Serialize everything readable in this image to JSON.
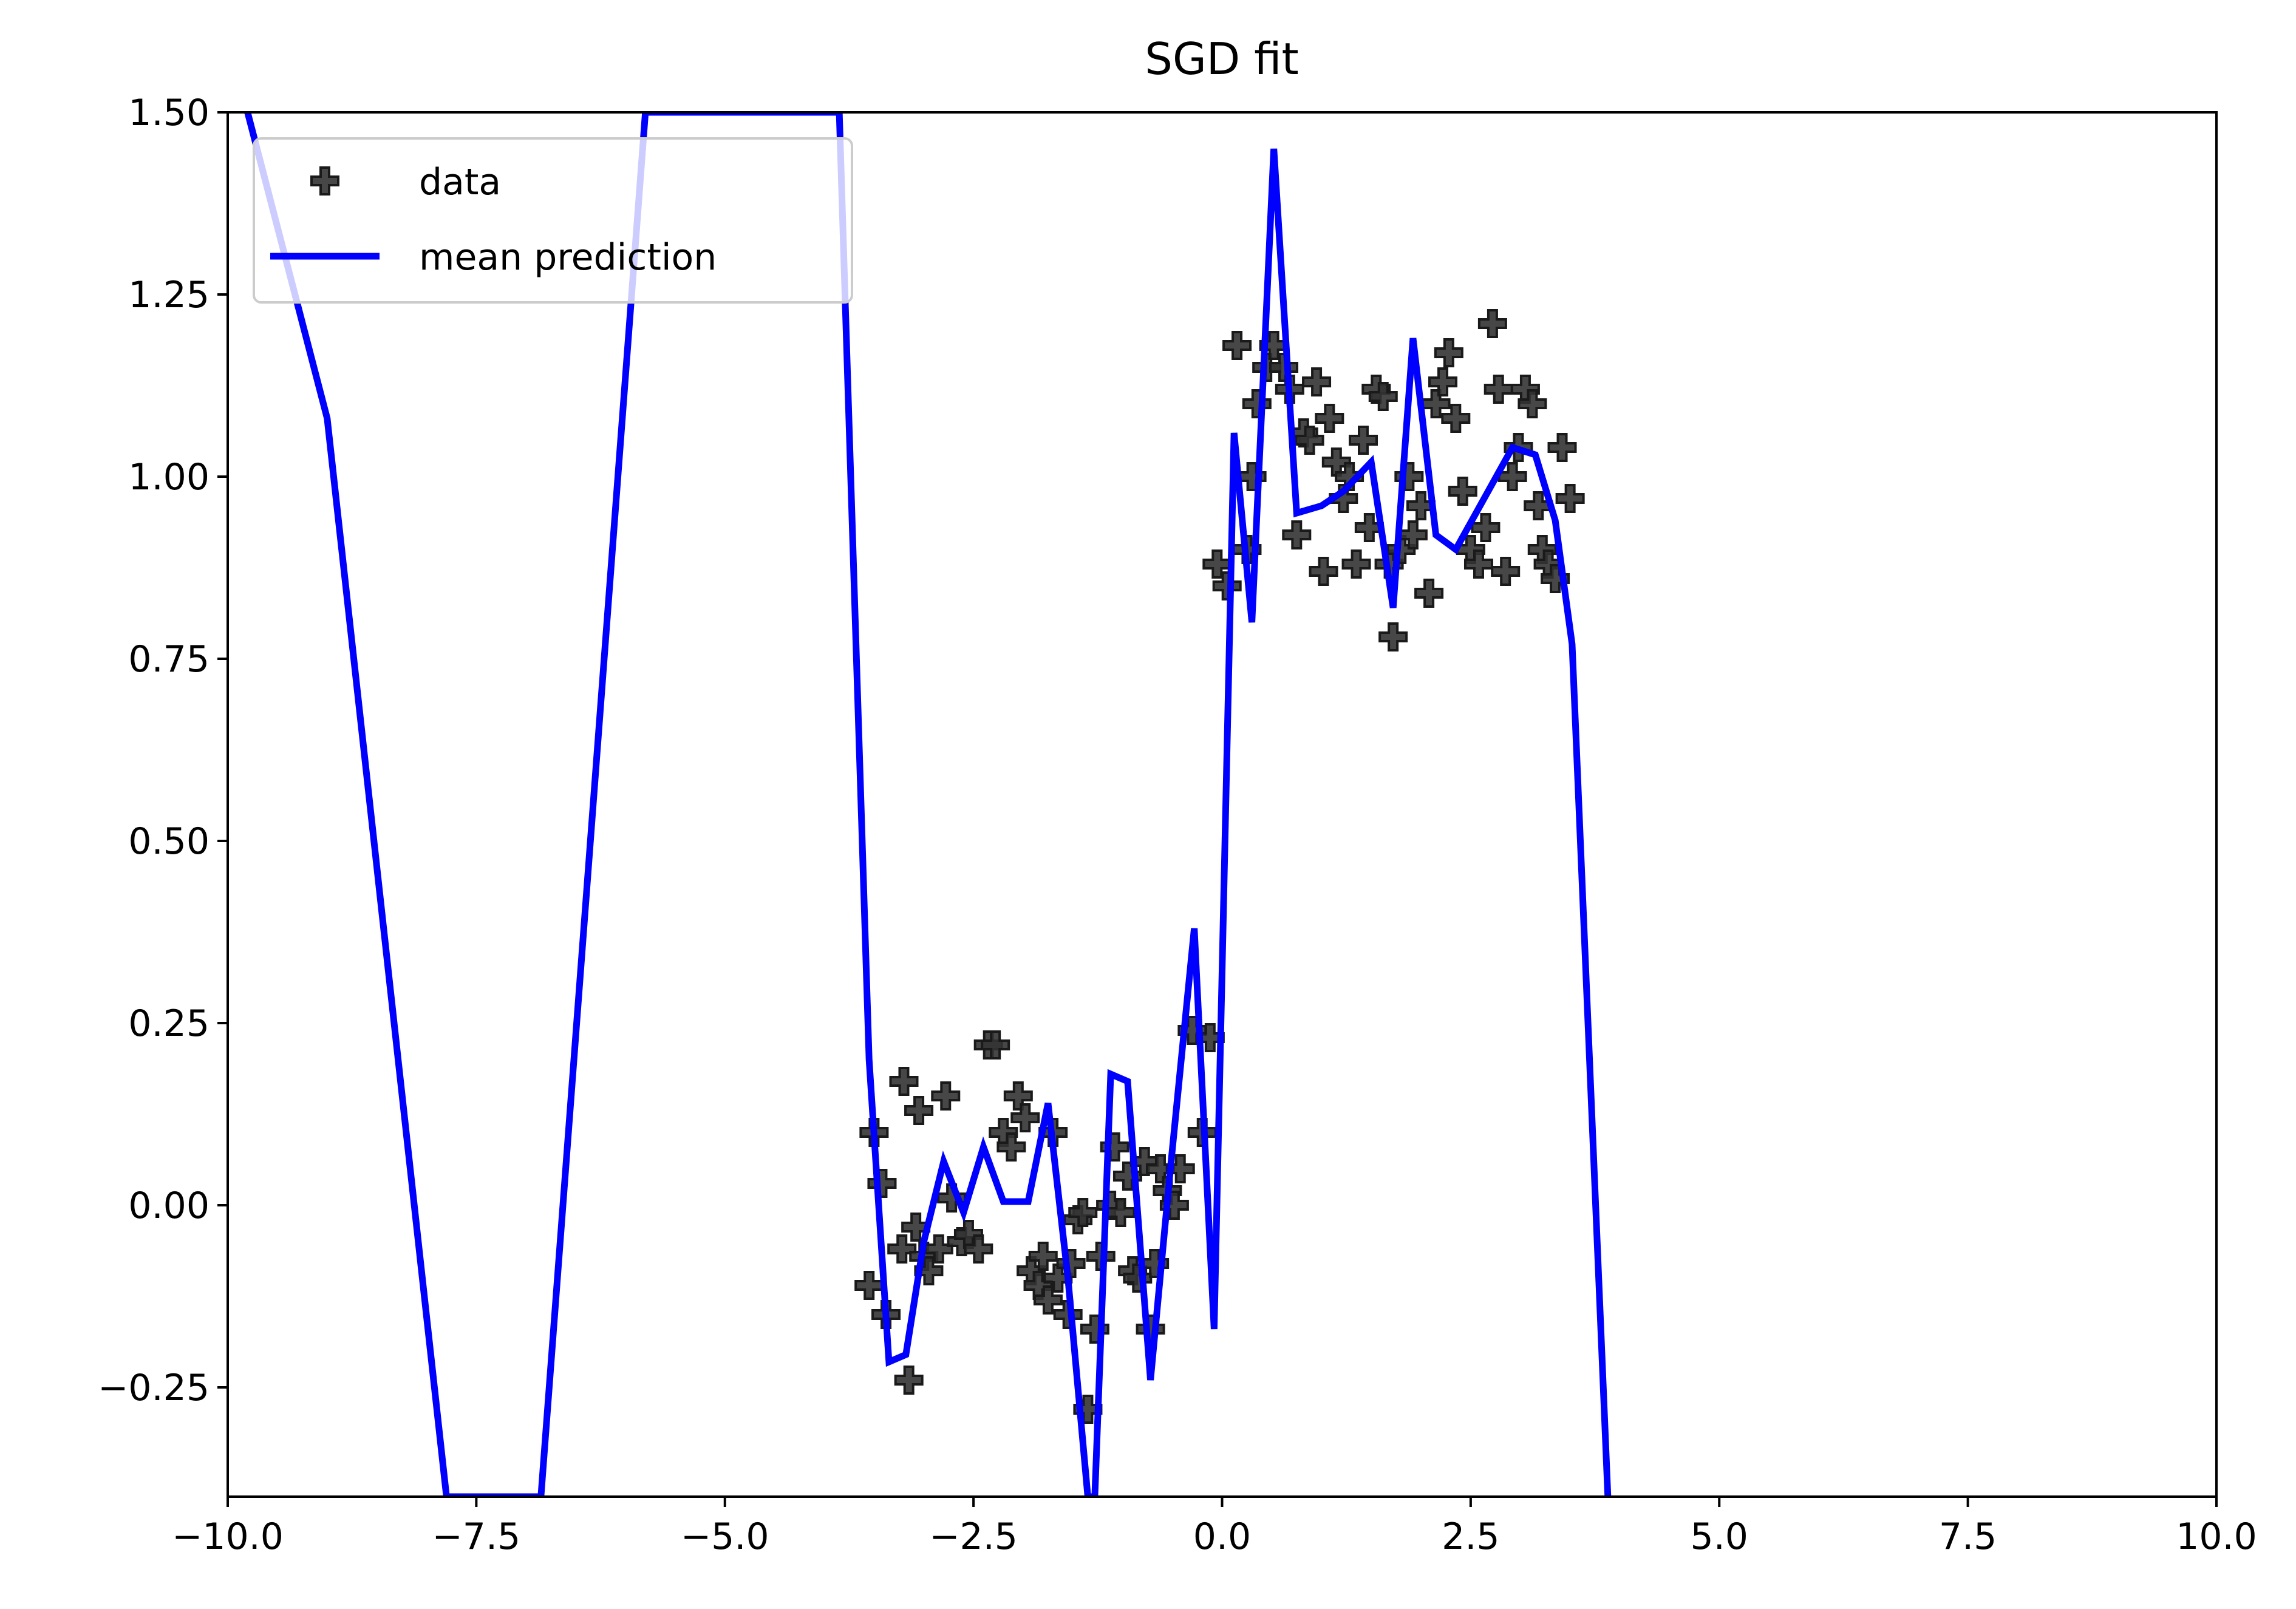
{
  "chart_data": {
    "type": "scatter",
    "title": "SGD fit",
    "xlabel": "",
    "ylabel": "",
    "xlim": [
      -10,
      10
    ],
    "ylim": [
      -0.4,
      1.5
    ],
    "x_ticks": [
      -10.0,
      -7.5,
      -5.0,
      -2.5,
      0.0,
      2.5,
      5.0,
      7.5,
      10.0
    ],
    "x_tick_labels": [
      "−10.0",
      "−7.5",
      "−5.0",
      "−2.5",
      "0.0",
      "2.5",
      "5.0",
      "7.5",
      "10.0"
    ],
    "y_ticks": [
      -0.25,
      0.0,
      0.25,
      0.5,
      0.75,
      1.0,
      1.25,
      1.5
    ],
    "y_tick_labels": [
      "−0.25",
      "0.00",
      "0.25",
      "0.50",
      "0.75",
      "1.00",
      "1.25",
      "1.50"
    ],
    "grid": false,
    "legend_position": "upper-left",
    "colors": {
      "data": "#333333",
      "mean_prediction": "#0000ff"
    },
    "series": [
      {
        "name": "data",
        "kind": "scatter",
        "marker": "plus",
        "points": [
          [
            -3.55,
            -0.11
          ],
          [
            -3.5,
            0.1
          ],
          [
            -3.42,
            0.03
          ],
          [
            -3.38,
            -0.15
          ],
          [
            -3.2,
            0.17
          ],
          [
            -3.22,
            -0.06
          ],
          [
            -3.15,
            -0.24
          ],
          [
            -3.05,
            0.13
          ],
          [
            -3.08,
            -0.03
          ],
          [
            -3.0,
            -0.07
          ],
          [
            -2.95,
            -0.09
          ],
          [
            -2.85,
            -0.06
          ],
          [
            -2.78,
            0.15
          ],
          [
            -2.72,
            0.01
          ],
          [
            -2.62,
            -0.05
          ],
          [
            -2.55,
            -0.04
          ],
          [
            -2.45,
            -0.06
          ],
          [
            -2.35,
            0.22
          ],
          [
            -2.28,
            0.22
          ],
          [
            -2.2,
            0.1
          ],
          [
            -2.12,
            0.08
          ],
          [
            -2.05,
            0.15
          ],
          [
            -1.98,
            0.12
          ],
          [
            -1.92,
            -0.09
          ],
          [
            -1.85,
            -0.11
          ],
          [
            -1.8,
            -0.07
          ],
          [
            -1.75,
            -0.13
          ],
          [
            -1.7,
            0.1
          ],
          [
            -1.65,
            -0.1
          ],
          [
            -1.55,
            -0.15
          ],
          [
            -1.52,
            -0.08
          ],
          [
            -1.45,
            -0.02
          ],
          [
            -1.4,
            -0.01
          ],
          [
            -1.35,
            -0.28
          ],
          [
            -1.28,
            -0.17
          ],
          [
            -1.22,
            -0.07
          ],
          [
            -1.12,
            0.0
          ],
          [
            -1.08,
            0.08
          ],
          [
            -1.02,
            -0.01
          ],
          [
            -0.95,
            0.04
          ],
          [
            -0.9,
            -0.09
          ],
          [
            -0.85,
            -0.1
          ],
          [
            -0.78,
            0.06
          ],
          [
            -0.72,
            -0.17
          ],
          [
            -0.68,
            -0.08
          ],
          [
            -0.62,
            0.05
          ],
          [
            -0.55,
            0.02
          ],
          [
            -0.48,
            0.0
          ],
          [
            -0.42,
            0.05
          ],
          [
            -0.3,
            0.24
          ],
          [
            -0.2,
            0.1
          ],
          [
            -0.12,
            0.23
          ],
          [
            -0.05,
            0.88
          ],
          [
            0.05,
            0.85
          ],
          [
            0.15,
            1.18
          ],
          [
            0.25,
            0.9
          ],
          [
            0.3,
            1.0
          ],
          [
            0.35,
            1.1
          ],
          [
            0.45,
            1.15
          ],
          [
            0.52,
            1.18
          ],
          [
            0.62,
            1.15
          ],
          [
            0.68,
            1.12
          ],
          [
            0.75,
            0.92
          ],
          [
            0.82,
            1.06
          ],
          [
            0.88,
            1.05
          ],
          [
            0.95,
            1.13
          ],
          [
            1.02,
            0.87
          ],
          [
            1.08,
            1.08
          ],
          [
            1.15,
            1.02
          ],
          [
            1.22,
            0.97
          ],
          [
            1.28,
            1.0
          ],
          [
            1.35,
            0.88
          ],
          [
            1.42,
            1.05
          ],
          [
            1.48,
            0.93
          ],
          [
            1.55,
            1.12
          ],
          [
            1.62,
            1.11
          ],
          [
            1.68,
            0.88
          ],
          [
            1.72,
            0.78
          ],
          [
            1.8,
            0.9
          ],
          [
            1.88,
            1.0
          ],
          [
            1.92,
            0.92
          ],
          [
            2.0,
            0.96
          ],
          [
            2.08,
            0.84
          ],
          [
            2.15,
            1.1
          ],
          [
            2.22,
            1.13
          ],
          [
            2.28,
            1.17
          ],
          [
            2.35,
            1.08
          ],
          [
            2.42,
            0.98
          ],
          [
            2.5,
            0.9
          ],
          [
            2.58,
            0.88
          ],
          [
            2.65,
            0.93
          ],
          [
            2.72,
            1.21
          ],
          [
            2.78,
            1.12
          ],
          [
            2.85,
            0.87
          ],
          [
            2.92,
            1.0
          ],
          [
            2.98,
            1.04
          ],
          [
            3.05,
            1.12
          ],
          [
            3.12,
            1.1
          ],
          [
            3.18,
            0.96
          ],
          [
            3.22,
            0.9
          ],
          [
            3.28,
            0.88
          ],
          [
            3.35,
            0.86
          ],
          [
            3.42,
            1.04
          ],
          [
            3.5,
            0.97
          ]
        ]
      },
      {
        "name": "mean prediction",
        "kind": "line",
        "points": [
          [
            -10.5,
            1.62
          ],
          [
            -9.8,
            1.5
          ],
          [
            -9.0,
            1.08
          ],
          [
            -7.8,
            -0.4
          ],
          [
            -6.85,
            -0.4
          ],
          [
            -5.8,
            1.5
          ],
          [
            -3.85,
            1.5
          ],
          [
            -3.7,
            0.85
          ],
          [
            -3.55,
            0.2
          ],
          [
            -3.35,
            -0.215
          ],
          [
            -3.18,
            -0.205
          ],
          [
            -3.0,
            -0.05
          ],
          [
            -2.8,
            0.06
          ],
          [
            -2.6,
            -0.01
          ],
          [
            -2.4,
            0.08
          ],
          [
            -2.2,
            0.005
          ],
          [
            -1.95,
            0.005
          ],
          [
            -1.75,
            0.14
          ],
          [
            -1.55,
            -0.1
          ],
          [
            -1.35,
            -0.4
          ],
          [
            -1.28,
            -0.4
          ],
          [
            -1.12,
            0.18
          ],
          [
            -0.95,
            0.17
          ],
          [
            -0.72,
            -0.24
          ],
          [
            -0.52,
            0.05
          ],
          [
            -0.28,
            0.38
          ],
          [
            -0.08,
            -0.17
          ],
          [
            0.12,
            1.06
          ],
          [
            0.3,
            0.8
          ],
          [
            0.52,
            1.45
          ],
          [
            0.75,
            0.95
          ],
          [
            1.0,
            0.96
          ],
          [
            1.22,
            0.98
          ],
          [
            1.5,
            1.02
          ],
          [
            1.72,
            0.82
          ],
          [
            1.92,
            1.19
          ],
          [
            2.15,
            0.92
          ],
          [
            2.35,
            0.9
          ],
          [
            2.92,
            1.04
          ],
          [
            3.15,
            1.03
          ],
          [
            3.35,
            0.94
          ],
          [
            3.52,
            0.77
          ],
          [
            3.88,
            -0.4
          ]
        ]
      }
    ]
  }
}
